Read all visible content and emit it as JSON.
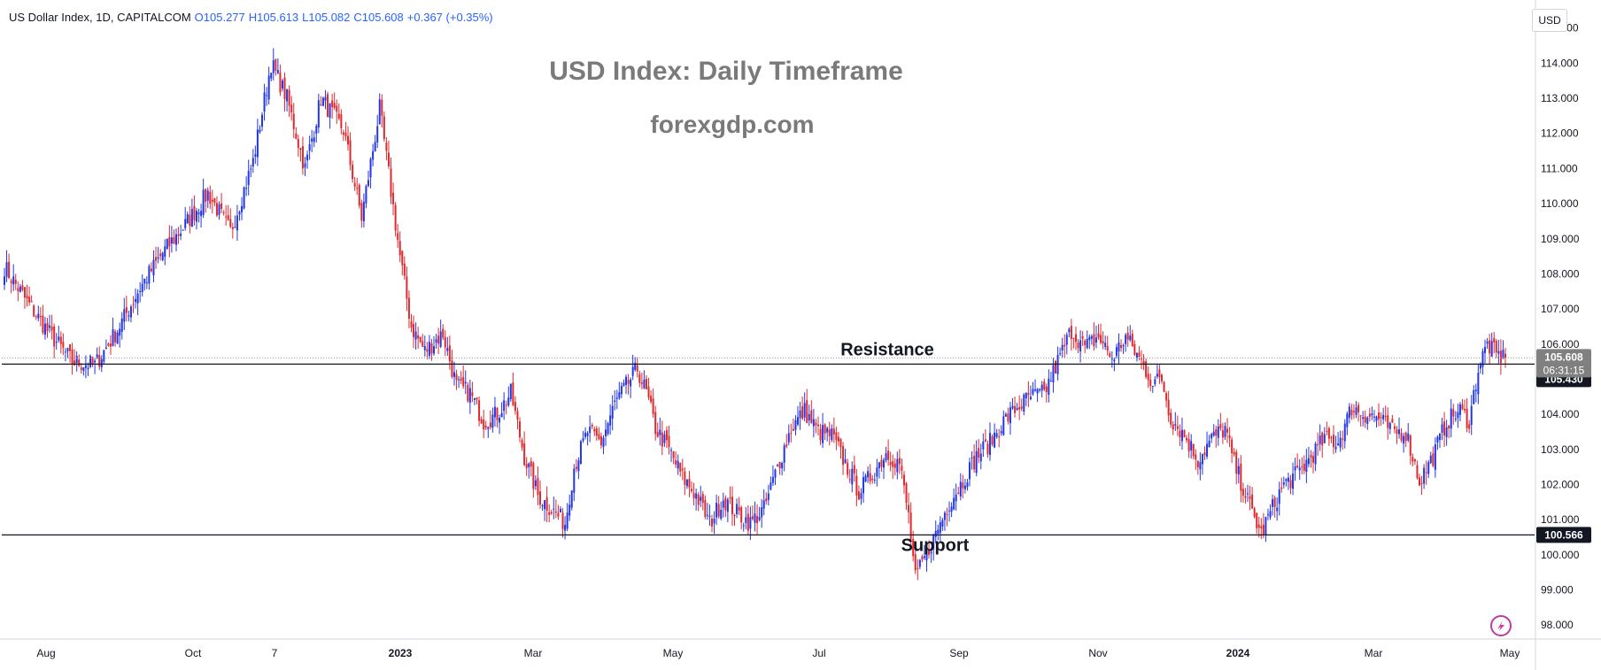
{
  "legend": {
    "symbol": "US Dollar Index, 1D, CAPITALCOM",
    "open": "O105.277",
    "high": "H105.613",
    "low": "L105.082",
    "close": "C105.608",
    "change": "+0.367 (+0.35%)"
  },
  "currency_button": "USD",
  "chart_data": {
    "type": "candlestick",
    "title": "USD Index: Daily Timeframe",
    "subtitle": "forexgdp.com",
    "ylim": [
      97.6,
      115.8
    ],
    "y_ticks": [
      "98.000",
      "99.000",
      "100.000",
      "101.000",
      "102.000",
      "103.000",
      "104.000",
      "105.000",
      "106.000",
      "107.000",
      "108.000",
      "109.000",
      "110.000",
      "111.000",
      "112.000",
      "113.000",
      "114.000",
      "115.000"
    ],
    "x_ticks": [
      "Aug",
      "Oct",
      "7",
      "2023",
      "Mar",
      "May",
      "Jul",
      "Sep",
      "Nov",
      "2024",
      "Mar",
      "May"
    ],
    "price_path_close": [
      [
        0,
        108.2
      ],
      [
        10,
        107.2
      ],
      [
        20,
        106.3
      ],
      [
        30,
        105.5
      ],
      [
        40,
        105.4
      ],
      [
        50,
        106.4
      ],
      [
        60,
        107.6
      ],
      [
        70,
        108.6
      ],
      [
        80,
        109.4
      ],
      [
        90,
        110.3
      ],
      [
        100,
        109.2
      ],
      [
        110,
        111.2
      ],
      [
        118,
        114.0
      ],
      [
        125,
        113.0
      ],
      [
        133,
        111.0
      ],
      [
        140,
        113.0
      ],
      [
        150,
        112.1
      ],
      [
        158,
        109.6
      ],
      [
        166,
        112.7
      ],
      [
        175,
        108.5
      ],
      [
        180,
        106.5
      ],
      [
        186,
        105.8
      ],
      [
        194,
        106.3
      ],
      [
        200,
        104.8
      ],
      [
        206,
        104.6
      ],
      [
        212,
        103.8
      ],
      [
        218,
        104.0
      ],
      [
        224,
        104.6
      ],
      [
        230,
        102.8
      ],
      [
        236,
        101.7
      ],
      [
        242,
        101.3
      ],
      [
        248,
        100.9
      ],
      [
        252,
        102.5
      ],
      [
        258,
        103.5
      ],
      [
        264,
        103.2
      ],
      [
        270,
        104.3
      ],
      [
        276,
        104.9
      ],
      [
        280,
        105.3
      ],
      [
        284,
        104.6
      ],
      [
        288,
        103.6
      ],
      [
        294,
        103.0
      ],
      [
        300,
        102.2
      ],
      [
        306,
        101.7
      ],
      [
        312,
        100.9
      ],
      [
        318,
        101.6
      ],
      [
        324,
        101.2
      ],
      [
        330,
        100.9
      ],
      [
        336,
        101.3
      ],
      [
        342,
        102.5
      ],
      [
        348,
        103.6
      ],
      [
        354,
        104.1
      ],
      [
        360,
        103.5
      ],
      [
        366,
        103.4
      ],
      [
        372,
        102.6
      ],
      [
        378,
        101.8
      ],
      [
        384,
        102.3
      ],
      [
        390,
        102.9
      ],
      [
        396,
        102.6
      ],
      [
        400,
        101.1
      ],
      [
        403,
        99.3
      ],
      [
        407,
        99.9
      ],
      [
        412,
        100.6
      ],
      [
        418,
        101.5
      ],
      [
        424,
        102.1
      ],
      [
        430,
        102.8
      ],
      [
        436,
        103.2
      ],
      [
        442,
        103.8
      ],
      [
        448,
        104.2
      ],
      [
        454,
        104.5
      ],
      [
        460,
        104.6
      ],
      [
        466,
        105.5
      ],
      [
        472,
        106.4
      ],
      [
        478,
        105.9
      ],
      [
        484,
        106.2
      ],
      [
        490,
        105.6
      ],
      [
        496,
        106.2
      ],
      [
        502,
        105.6
      ],
      [
        508,
        104.9
      ],
      [
        512,
        105.0
      ],
      [
        516,
        103.9
      ],
      [
        522,
        103.4
      ],
      [
        528,
        102.7
      ],
      [
        534,
        103.3
      ],
      [
        540,
        103.6
      ],
      [
        544,
        102.6
      ],
      [
        548,
        101.9
      ],
      [
        552,
        101.2
      ],
      [
        556,
        100.6
      ],
      [
        560,
        101.2
      ],
      [
        566,
        102.0
      ],
      [
        572,
        102.3
      ],
      [
        578,
        102.8
      ],
      [
        584,
        103.3
      ],
      [
        590,
        103.2
      ],
      [
        596,
        104.2
      ],
      [
        602,
        104.0
      ],
      [
        608,
        103.9
      ],
      [
        614,
        103.5
      ],
      [
        620,
        103.5
      ],
      [
        626,
        102.1
      ],
      [
        632,
        102.8
      ],
      [
        638,
        103.8
      ],
      [
        644,
        104.1
      ],
      [
        648,
        103.8
      ],
      [
        652,
        105.3
      ],
      [
        656,
        106.0
      ],
      [
        660,
        105.7
      ],
      [
        664,
        105.6
      ]
    ],
    "levels": [
      {
        "name": "Resistance",
        "value": 105.43,
        "axis_label": "105.430"
      },
      {
        "name": "Support",
        "value": 100.566,
        "axis_label": "100.566"
      }
    ],
    "last_price": {
      "value": 105.608,
      "label": "105.608",
      "countdown": "06:31:15"
    },
    "up_color": "#2136e8",
    "down_color": "#e0282e",
    "level_color": "#131722",
    "grid": false
  }
}
